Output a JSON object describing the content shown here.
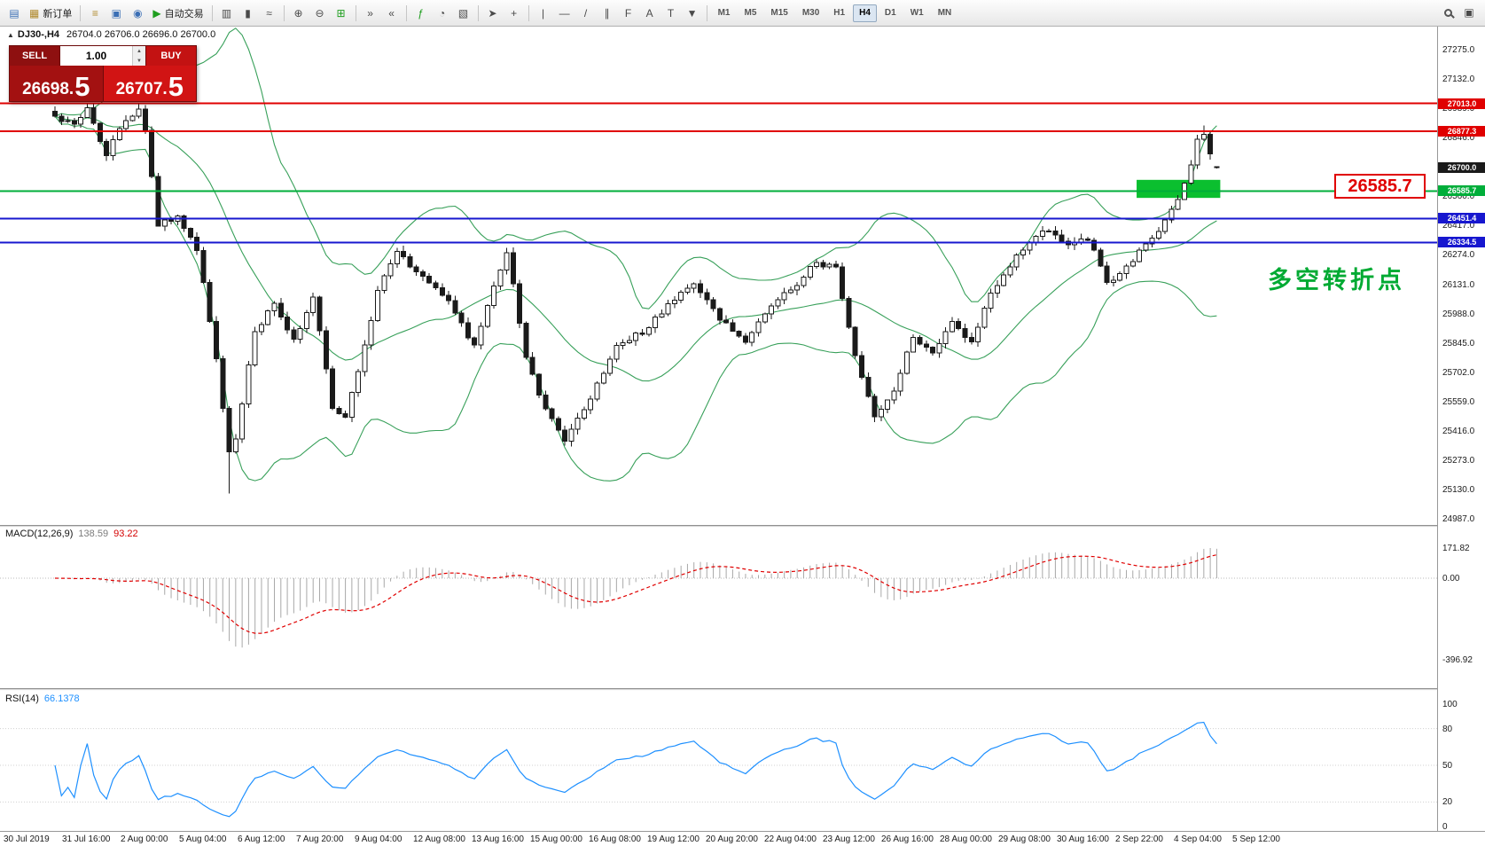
{
  "colors": {
    "bull_candle": "#ffffff",
    "bear_candle": "#1a1a1a",
    "candle_outline": "#1a1a1a",
    "bollinger": "#38a05a",
    "hline_red": "#e00000",
    "hline_green": "#00ae3a",
    "hline_blue": "#1717cf",
    "current_price_tag": "#1a1a1a",
    "highlight_box": "#0bbf2f",
    "macd_histogram": "#a8a8a8",
    "macd_signal": "#e00000",
    "rsi_line": "#1e90ff",
    "callout_red": "#e00000",
    "turning_label_green": "#00aa33"
  },
  "toolbar": {
    "groups": [
      [
        {
          "name": "new-chart",
          "glyph": "▤",
          "color": "#3b6fb5"
        },
        {
          "name": "new-order",
          "glyph": "▦",
          "label": "新订单",
          "color": "#b08a2e"
        }
      ],
      [
        {
          "name": "market-watch",
          "glyph": "≡",
          "color": "#b08a2e"
        },
        {
          "name": "data-window",
          "glyph": "▣",
          "color": "#3b6fb5"
        },
        {
          "name": "navigator",
          "glyph": "◉",
          "color": "#3b6fb5"
        },
        {
          "name": "autotrading",
          "glyph": "▶",
          "label": "自动交易",
          "color": "#1f9e1f"
        }
      ],
      [
        {
          "name": "bar-chart",
          "glyph": "▥"
        },
        {
          "name": "candlestick-chart",
          "glyph": "▮"
        },
        {
          "name": "line-chart",
          "glyph": "≈"
        }
      ],
      [
        {
          "name": "zoom-in",
          "glyph": "⊕"
        },
        {
          "name": "zoom-out",
          "glyph": "⊖"
        },
        {
          "name": "tile-windows",
          "glyph": "⊞",
          "color": "#1f9e1f"
        }
      ],
      [
        {
          "name": "auto-scroll",
          "glyph": "»"
        },
        {
          "name": "chart-shift",
          "glyph": "«"
        }
      ],
      [
        {
          "name": "indicators",
          "glyph": "ƒ",
          "color": "#1f9e1f"
        },
        {
          "name": "cycles",
          "glyph": "◔"
        },
        {
          "name": "templates",
          "glyph": "▧"
        }
      ],
      [
        {
          "name": "cursor",
          "glyph": "➤"
        },
        {
          "name": "crosshair",
          "glyph": "+"
        }
      ],
      [
        {
          "name": "vertical-line",
          "glyph": "|"
        },
        {
          "name": "horizontal-line",
          "glyph": "—"
        },
        {
          "name": "trendline",
          "glyph": "/"
        },
        {
          "name": "equidistant-channel",
          "glyph": "∥"
        },
        {
          "name": "fibonacci",
          "glyph": "F"
        },
        {
          "name": "text",
          "glyph": "A"
        },
        {
          "name": "text-label",
          "glyph": "T"
        },
        {
          "name": "arrows",
          "glyph": "▼"
        }
      ]
    ],
    "right_buttons": [
      {
        "name": "search",
        "css": "mag"
      },
      {
        "name": "new-window",
        "glyph": "▣"
      }
    ],
    "timeframes": [
      "M1",
      "M5",
      "M15",
      "M30",
      "H1",
      "H4",
      "D1",
      "W1",
      "MN"
    ],
    "active_timeframe": "H4"
  },
  "chart": {
    "panel_toggle_glyph": "▲",
    "symbol_period": "DJ30-,H4",
    "ohlc_text": "26704.0 26706.0 26696.0 26700.0"
  },
  "trade_panel": {
    "sell_label": "SELL",
    "buy_label": "BUY",
    "volume": "1.00",
    "spin_up": "▲",
    "spin_down": "▼",
    "sell_price_main": "26698.",
    "sell_price_big": "5",
    "buy_price_main": "26707.",
    "buy_price_big": "5"
  },
  "annotations": {
    "price_callout": "26585.7",
    "turning_point": "多空转折点"
  },
  "macd": {
    "name": "MACD(12,26,9)",
    "value": "138.59",
    "signal_value": "93.22",
    "axis_labels": [
      "171.82",
      "0.00",
      "-396.92"
    ]
  },
  "rsi": {
    "name": "RSI(14)",
    "value": "66.1378",
    "levels": [
      80,
      50,
      20
    ],
    "axis_labels": [
      "100",
      "80",
      "50",
      "20",
      "0"
    ]
  },
  "price_axis_labels": [
    "27275.0",
    "27132.0",
    "26989.0",
    "26846.0",
    "26703.0",
    "26560.0",
    "26417.0",
    "26274.0",
    "26131.0",
    "25988.0",
    "25845.0",
    "25702.0",
    "25559.0",
    "25416.0",
    "25273.0",
    "25130.0",
    "24987.0"
  ],
  "time_axis": [
    "30 Jul 2019",
    "31 Jul 16:00",
    "2 Aug 00:00",
    "5 Aug 04:00",
    "6 Aug 12:00",
    "7 Aug 20:00",
    "9 Aug 04:00",
    "12 Aug 08:00",
    "13 Aug 16:00",
    "15 Aug 00:00",
    "16 Aug 08:00",
    "19 Aug 12:00",
    "20 Aug 20:00",
    "22 Aug 04:00",
    "23 Aug 12:00",
    "26 Aug 16:00",
    "28 Aug 00:00",
    "29 Aug 08:00",
    "30 Aug 16:00",
    "2 Sep 22:00",
    "4 Sep 04:00",
    "5 Sep 12:00"
  ],
  "chart_data": {
    "type": "candlestick",
    "symbol": "DJ30-",
    "period": "H4",
    "price_min": 24987,
    "price_max": 27275,
    "price_step": 143,
    "candle_count": 181,
    "last_candle": {
      "open": 26704.0,
      "high": 26706.0,
      "low": 26696.0,
      "close": 26700.0
    },
    "close_waypoints": [
      [
        0,
        26950
      ],
      [
        3,
        26900
      ],
      [
        5,
        26985
      ],
      [
        8,
        26770
      ],
      [
        11,
        26930
      ],
      [
        13,
        26975
      ],
      [
        14,
        26890
      ],
      [
        16,
        26430
      ],
      [
        19,
        26450
      ],
      [
        22,
        26310
      ],
      [
        25,
        25760
      ],
      [
        27,
        25300
      ],
      [
        28,
        25380
      ],
      [
        31,
        25900
      ],
      [
        34,
        26040
      ],
      [
        37,
        25860
      ],
      [
        40,
        26070
      ],
      [
        43,
        25530
      ],
      [
        45,
        25470
      ],
      [
        47,
        25720
      ],
      [
        50,
        26090
      ],
      [
        53,
        26290
      ],
      [
        57,
        26160
      ],
      [
        61,
        26040
      ],
      [
        65,
        25830
      ],
      [
        68,
        26120
      ],
      [
        70,
        26300
      ],
      [
        73,
        25770
      ],
      [
        76,
        25510
      ],
      [
        79,
        25370
      ],
      [
        83,
        25580
      ],
      [
        87,
        25840
      ],
      [
        91,
        25900
      ],
      [
        95,
        26030
      ],
      [
        99,
        26140
      ],
      [
        103,
        25960
      ],
      [
        107,
        25860
      ],
      [
        111,
        26040
      ],
      [
        115,
        26140
      ],
      [
        118,
        26240
      ],
      [
        121,
        26210
      ],
      [
        124,
        25790
      ],
      [
        127,
        25480
      ],
      [
        130,
        25620
      ],
      [
        133,
        25880
      ],
      [
        136,
        25800
      ],
      [
        139,
        25940
      ],
      [
        142,
        25860
      ],
      [
        145,
        26080
      ],
      [
        148,
        26230
      ],
      [
        151,
        26340
      ],
      [
        154,
        26400
      ],
      [
        157,
        26310
      ],
      [
        160,
        26360
      ],
      [
        163,
        26130
      ],
      [
        166,
        26210
      ],
      [
        169,
        26330
      ],
      [
        172,
        26430
      ],
      [
        175,
        26610
      ],
      [
        177,
        26840
      ],
      [
        178,
        26855
      ],
      [
        179,
        26760
      ],
      [
        180,
        26700
      ]
    ],
    "high_overrides": [
      [
        13,
        27013
      ],
      [
        178,
        26905
      ]
    ],
    "low_overrides": [
      [
        27,
        25110
      ]
    ],
    "bollinger_period": 20,
    "bollinger_deviation": 2,
    "hlines": [
      {
        "price": 27013.0,
        "label": "27013.0",
        "color_key": "hline_red"
      },
      {
        "price": 26877.3,
        "label": "26877.3",
        "color_key": "hline_red"
      },
      {
        "price": 26700.0,
        "label": "26700.0",
        "color_key": "current_price_tag",
        "tag_only": true
      },
      {
        "price": 26585.7,
        "label": "26585.7",
        "color_key": "hline_green"
      },
      {
        "price": 26451.4,
        "label": "26451.4",
        "color_key": "hline_blue"
      },
      {
        "price": 26334.5,
        "label": "26334.5",
        "color_key": "hline_blue"
      }
    ],
    "highlight_box": {
      "from_candle": 168,
      "to_candle": 180,
      "price_top": 26640,
      "price_bottom": 26552,
      "color_key": "highlight_box"
    }
  }
}
